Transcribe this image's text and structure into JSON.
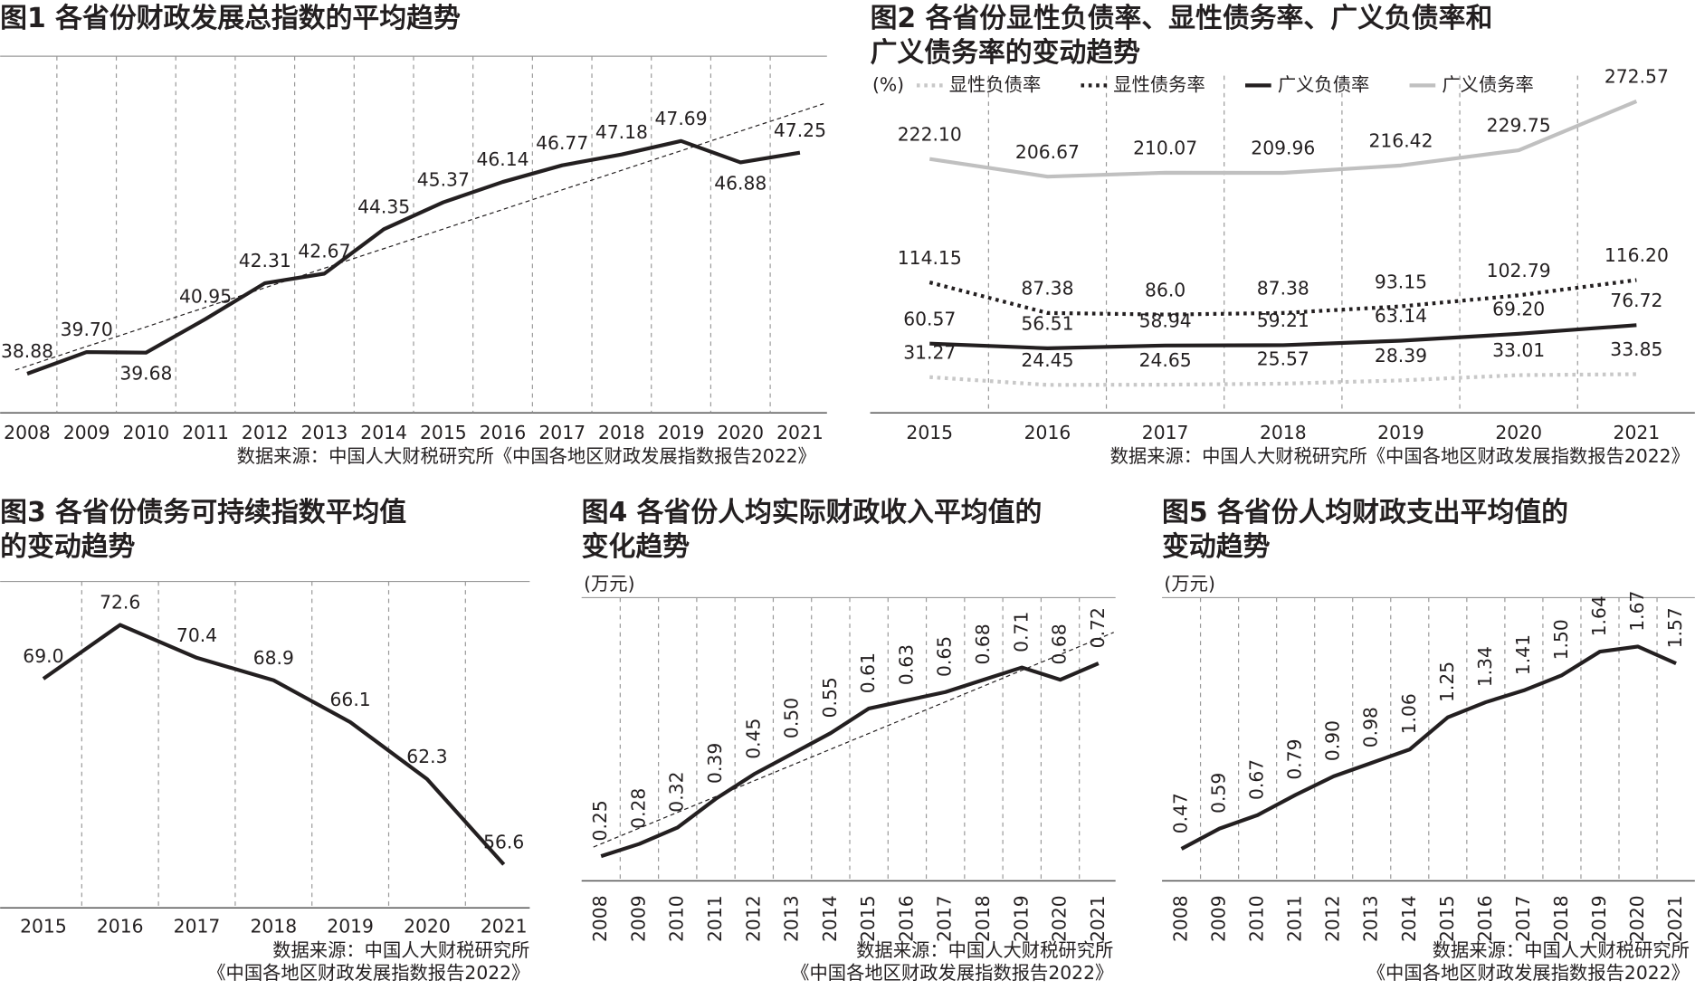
{
  "chart_data": [
    {
      "type": "line",
      "title": "图1 各省份财政发展总指数的平均趋势",
      "categories": [
        "2008",
        "2009",
        "2010",
        "2011",
        "2012",
        "2013",
        "2014",
        "2015",
        "2016",
        "2017",
        "2018",
        "2019",
        "2020",
        "2021"
      ],
      "values": [
        38.88,
        39.7,
        39.68,
        40.95,
        42.31,
        42.67,
        44.35,
        45.37,
        46.14,
        46.77,
        47.18,
        47.69,
        46.88,
        47.25
      ],
      "value_labels": [
        "38.88",
        "39.70",
        "39.68",
        "40.95",
        "42.31",
        "42.67",
        "44.35",
        "45.37",
        "46.14",
        "46.77",
        "47.18",
        "47.69",
        "46.88",
        "47.25"
      ],
      "color": "#231f20",
      "ylim": [
        37.4,
        50.9
      ],
      "trendline": true,
      "grid": true,
      "source": "数据来源：中国人大财税研究所《中国各地区财政发展指数报告2022》"
    },
    {
      "type": "line",
      "title": [
        "图2  各省份显性负债率、显性债务率、广义负债率和",
        "广义债务率的变动趋势"
      ],
      "y_label": "(%)",
      "categories": [
        "2015",
        "2016",
        "2017",
        "2018",
        "2019",
        "2020",
        "2021"
      ],
      "series": [
        {
          "name": "显性负债率",
          "color": "#c8c8c8",
          "style": "dotted",
          "values": [
            31.27,
            24.45,
            24.65,
            25.57,
            28.39,
            33.01,
            33.85
          ],
          "value_labels": [
            "31.27",
            "24.45",
            "24.65",
            "25.57",
            "28.39",
            "33.01",
            "33.85"
          ]
        },
        {
          "name": "显性债务率",
          "color": "#231f20",
          "style": "dotted",
          "values": [
            114.15,
            87.38,
            86.0,
            87.38,
            93.15,
            102.79,
            116.2
          ],
          "value_labels": [
            "114.15",
            "87.38",
            "86.0",
            "87.38",
            "93.15",
            "102.79",
            "116.20"
          ]
        },
        {
          "name": "广义负债率",
          "color": "#231f20",
          "style": "solid",
          "values": [
            60.57,
            56.51,
            58.94,
            59.21,
            63.14,
            69.2,
            76.72
          ],
          "value_labels": [
            "60.57",
            "56.51",
            "58.94",
            "59.21",
            "63.14",
            "69.20",
            "76.72"
          ]
        },
        {
          "name": "广义债务率",
          "color": "#c0c0c0",
          "style": "solid",
          "values": [
            222.1,
            206.67,
            210.07,
            209.96,
            216.42,
            229.75,
            272.57
          ],
          "value_labels": [
            "222.10",
            "206.67",
            "210.07",
            "209.96",
            "216.42",
            "229.75",
            "272.57"
          ]
        }
      ],
      "ylim": [
        0,
        295
      ],
      "grid": true,
      "legend": "top",
      "source": "数据来源：中国人大财税研究所《中国各地区财政发展指数报告2022》"
    },
    {
      "type": "line",
      "title": [
        "图3  各省份债务可持续指数平均值",
        "的变动趋势"
      ],
      "categories": [
        "2015",
        "2016",
        "2017",
        "2018",
        "2019",
        "2020",
        "2021"
      ],
      "values": [
        69.0,
        72.6,
        70.4,
        68.9,
        66.1,
        62.3,
        56.6
      ],
      "value_labels": [
        "69.0",
        "72.6",
        "70.4",
        "68.9",
        "66.1",
        "62.3",
        "56.6"
      ],
      "color": "#231f20",
      "ylim": [
        53.7,
        75.5
      ],
      "grid": true,
      "source": [
        "数据来源：中国人大财税研究所",
        "《中国各地区财政发展指数报告2022》"
      ]
    },
    {
      "type": "line",
      "title": [
        "图4 各省份人均实际财政收入平均值的",
        "变化趋势"
      ],
      "y_label": "(万元)",
      "categories": [
        "2008",
        "2009",
        "2010",
        "2011",
        "2012",
        "2013",
        "2014",
        "2015",
        "2016",
        "2017",
        "2018",
        "2019",
        "2020",
        "2021"
      ],
      "values": [
        0.25,
        0.28,
        0.32,
        0.39,
        0.45,
        0.5,
        0.55,
        0.61,
        0.63,
        0.65,
        0.68,
        0.71,
        0.68,
        0.72
      ],
      "value_labels": [
        "0.25",
        "0.28",
        "0.32",
        "0.39",
        "0.45",
        "0.50",
        "0.55",
        "0.61",
        "0.63",
        "0.65",
        "0.68",
        "0.71",
        "0.68",
        "0.72"
      ],
      "color": "#231f20",
      "ylim": [
        0.19,
        0.88
      ],
      "trendline": true,
      "grid": true,
      "source": [
        "数据来源：中国人大财税研究所",
        "《中国各地区财政发展指数报告2022》"
      ]
    },
    {
      "type": "line",
      "title": [
        "图5 各省份人均财政支出平均值的",
        "变动趋势"
      ],
      "y_label": "(万元)",
      "categories": [
        "2008",
        "2009",
        "2010",
        "2011",
        "2012",
        "2013",
        "2014",
        "2015",
        "2016",
        "2017",
        "2018",
        "2019",
        "2020",
        "2021"
      ],
      "values": [
        0.47,
        0.59,
        0.67,
        0.79,
        0.9,
        0.98,
        1.06,
        1.25,
        1.34,
        1.41,
        1.5,
        1.64,
        1.67,
        1.57
      ],
      "value_labels": [
        "0.47",
        "0.59",
        "0.67",
        "0.79",
        "0.90",
        "0.98",
        "1.06",
        "1.25",
        "1.34",
        "1.41",
        "1.50",
        "1.64",
        "1.67",
        "1.57"
      ],
      "color": "#231f20",
      "ylim": [
        0.28,
        1.96
      ],
      "grid": true,
      "source": [
        "数据来源：中国人大财税研究所",
        "《中国各地区财政发展指数报告2022》"
      ]
    }
  ]
}
